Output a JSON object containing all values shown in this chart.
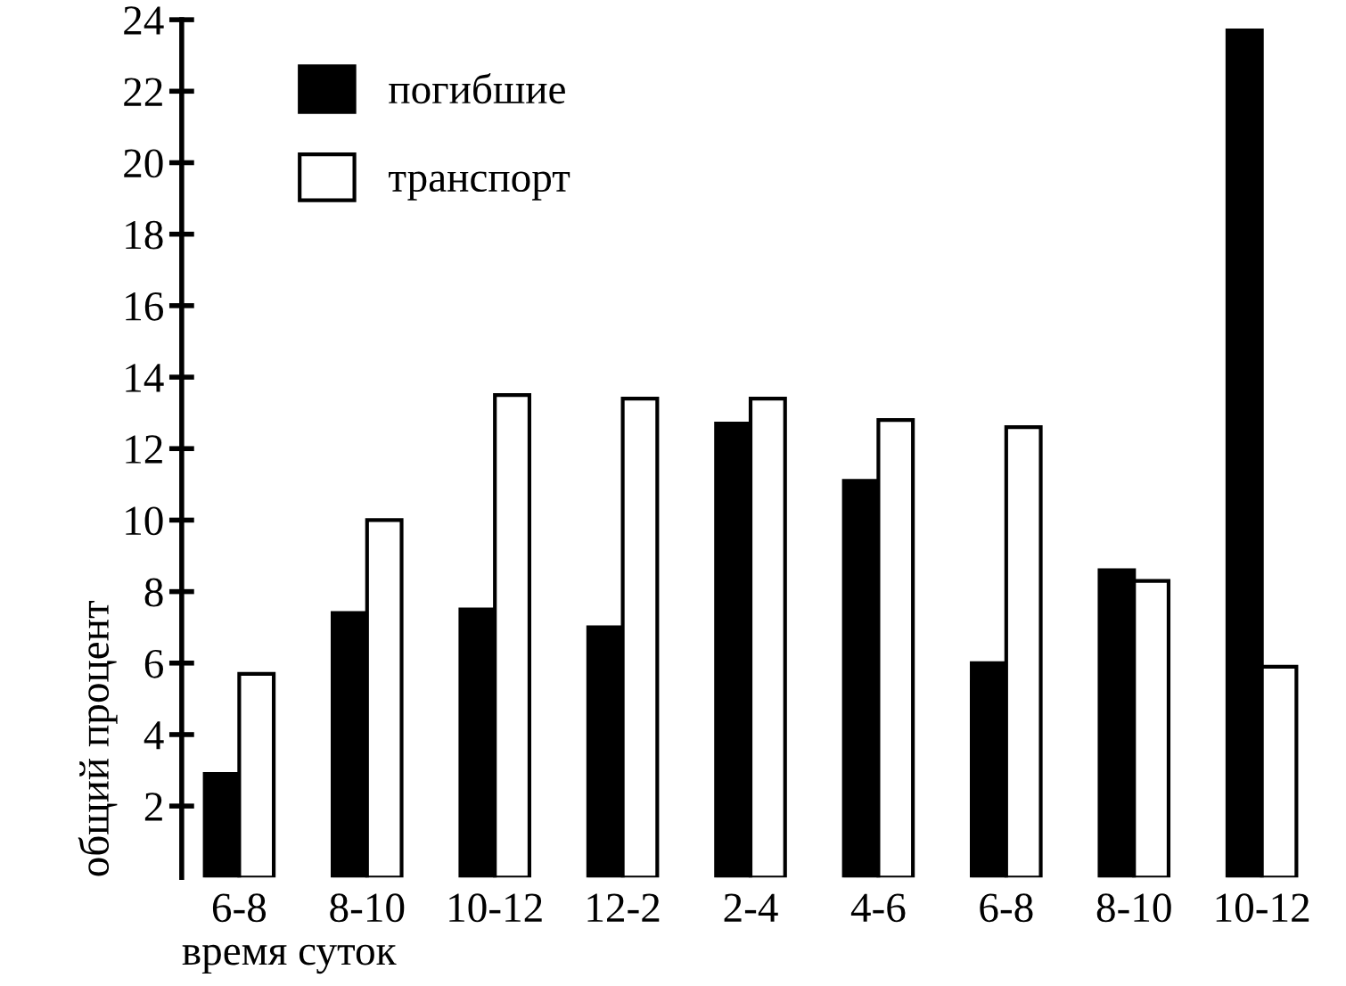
{
  "chart_data": {
    "type": "bar",
    "xlabel": "время суток",
    "ylabel": "общий процент",
    "categories": [
      "6-8",
      "8-10",
      "10-12",
      "12-2",
      "2-4",
      "4-6",
      "6-8",
      "8-10",
      "10-12"
    ],
    "series": [
      {
        "name": "погибшие",
        "color": "#000000",
        "values": [
          2.9,
          7.4,
          7.5,
          7.0,
          12.7,
          11.1,
          6.0,
          8.6,
          23.7
        ]
      },
      {
        "name": "транспорт",
        "color": "#ffffff",
        "values": [
          5.7,
          10.0,
          13.5,
          13.4,
          13.4,
          12.8,
          12.6,
          8.3,
          5.9
        ]
      }
    ],
    "ylim": [
      0,
      24
    ],
    "yticks": [
      2,
      4,
      6,
      8,
      10,
      12,
      14,
      16,
      18,
      20,
      22,
      24
    ],
    "grid": false,
    "legend": "top left"
  }
}
